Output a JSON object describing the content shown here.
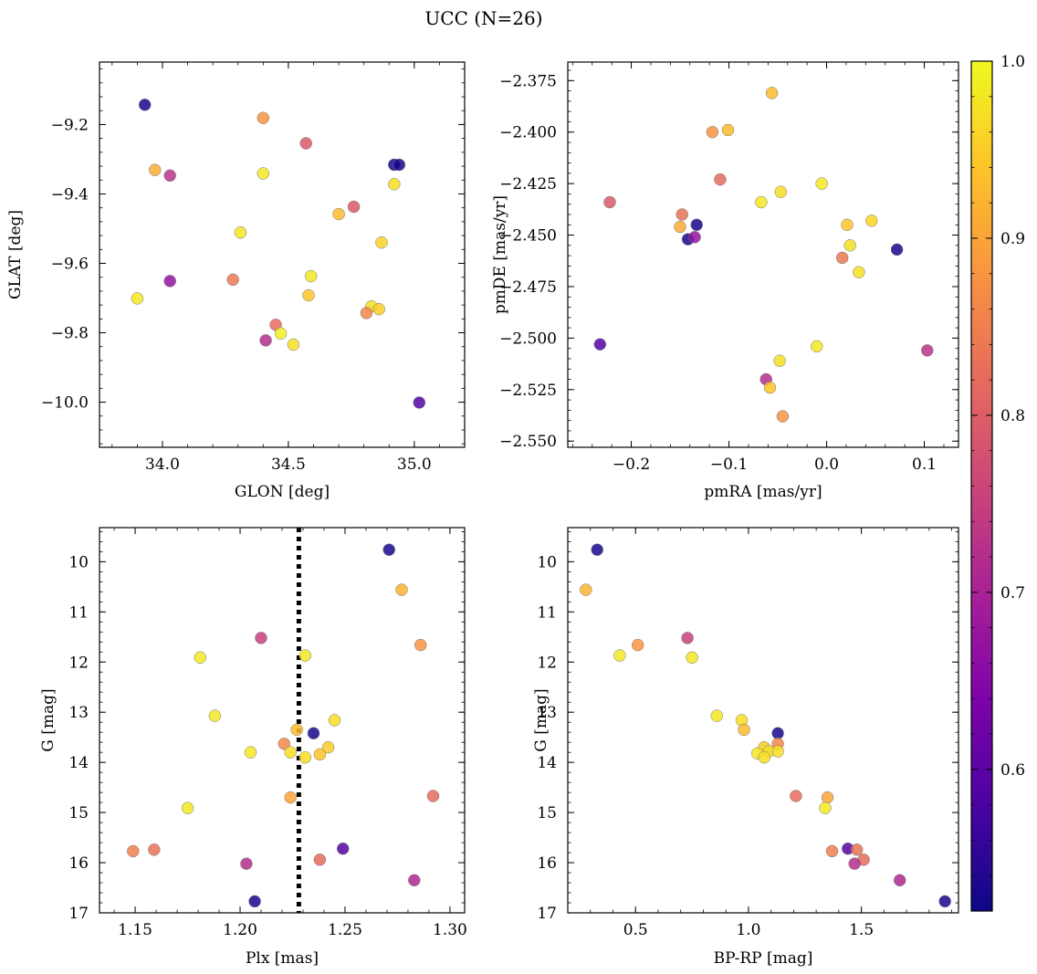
{
  "figure": {
    "title": "UCC (N=26)"
  },
  "colorbar": {
    "colormap": "plasma",
    "vmin": 0.52,
    "vmax": 1.0,
    "ticks": [
      "0.6",
      "0.7",
      "0.8",
      "0.9",
      "1.0"
    ]
  },
  "chart_data": [
    {
      "type": "scatter",
      "name": "position",
      "xlabel": "GLON [deg]",
      "ylabel": "GLAT [deg]",
      "xlim": [
        33.75,
        35.2
      ],
      "ylim": [
        -10.13,
        -9.02
      ],
      "y_inverted": false,
      "xticks": [
        "34.0",
        "34.5",
        "35.0"
      ],
      "yticks": [
        "-9.2",
        "-9.4",
        "-9.6",
        "-9.8",
        "-10.0"
      ],
      "points": [
        {
          "x": 33.93,
          "y": -9.143,
          "c": 0.53
        },
        {
          "x": 34.4,
          "y": -9.181,
          "c": 0.88
        },
        {
          "x": 34.57,
          "y": -9.254,
          "c": 0.79
        },
        {
          "x": 33.97,
          "y": -9.331,
          "c": 0.91
        },
        {
          "x": 34.03,
          "y": -9.347,
          "c": 0.73
        },
        {
          "x": 34.4,
          "y": -9.341,
          "c": 0.98
        },
        {
          "x": 34.92,
          "y": -9.316,
          "c": 0.53
        },
        {
          "x": 34.94,
          "y": -9.316,
          "c": 0.53
        },
        {
          "x": 34.92,
          "y": -9.372,
          "c": 0.97
        },
        {
          "x": 34.76,
          "y": -9.437,
          "c": 0.79
        },
        {
          "x": 34.7,
          "y": -9.458,
          "c": 0.93
        },
        {
          "x": 34.31,
          "y": -9.511,
          "c": 0.98
        },
        {
          "x": 34.87,
          "y": -9.54,
          "c": 0.96
        },
        {
          "x": 34.59,
          "y": -9.637,
          "c": 0.98
        },
        {
          "x": 34.03,
          "y": -9.651,
          "c": 0.67
        },
        {
          "x": 34.28,
          "y": -9.647,
          "c": 0.84
        },
        {
          "x": 33.9,
          "y": -9.701,
          "c": 0.98
        },
        {
          "x": 34.58,
          "y": -9.692,
          "c": 0.94
        },
        {
          "x": 34.83,
          "y": -9.724,
          "c": 0.97
        },
        {
          "x": 34.86,
          "y": -9.732,
          "c": 0.95
        },
        {
          "x": 34.81,
          "y": -9.743,
          "c": 0.86
        },
        {
          "x": 34.45,
          "y": -9.777,
          "c": 0.82
        },
        {
          "x": 34.47,
          "y": -9.802,
          "c": 0.99
        },
        {
          "x": 34.41,
          "y": -9.822,
          "c": 0.72
        },
        {
          "x": 34.52,
          "y": -9.834,
          "c": 0.97
        },
        {
          "x": 35.02,
          "y": -10.001,
          "c": 0.59
        }
      ]
    },
    {
      "type": "scatter",
      "name": "proper-motion",
      "xlabel": "pmRA [mas/yr]",
      "ylabel": "pmDE [mas/yr]",
      "xlim": [
        -0.265,
        0.135
      ],
      "ylim": [
        -2.553,
        -2.366
      ],
      "y_inverted": false,
      "xticks": [
        "-0.2",
        "-0.1",
        "0.0",
        "0.1"
      ],
      "yticks": [
        "-2.375",
        "-2.400",
        "-2.425",
        "-2.450",
        "-2.475",
        "-2.500",
        "-2.525",
        "-2.550"
      ],
      "points": [
        {
          "x": -0.056,
          "y": -2.381,
          "c": 0.93
        },
        {
          "x": -0.117,
          "y": -2.4,
          "c": 0.88
        },
        {
          "x": -0.101,
          "y": -2.399,
          "c": 0.93
        },
        {
          "x": -0.109,
          "y": -2.423,
          "c": 0.82
        },
        {
          "x": -0.005,
          "y": -2.425,
          "c": 0.98
        },
        {
          "x": -0.222,
          "y": -2.434,
          "c": 0.79
        },
        {
          "x": -0.067,
          "y": -2.434,
          "c": 0.98
        },
        {
          "x": -0.047,
          "y": -2.429,
          "c": 0.97
        },
        {
          "x": -0.148,
          "y": -2.44,
          "c": 0.83
        },
        {
          "x": -0.15,
          "y": -2.446,
          "c": 0.91
        },
        {
          "x": -0.133,
          "y": -2.445,
          "c": 0.53
        },
        {
          "x": -0.142,
          "y": -2.452,
          "c": 0.53
        },
        {
          "x": -0.135,
          "y": -2.451,
          "c": 0.67
        },
        {
          "x": 0.021,
          "y": -2.445,
          "c": 0.94
        },
        {
          "x": 0.046,
          "y": -2.443,
          "c": 0.96
        },
        {
          "x": 0.024,
          "y": -2.455,
          "c": 0.97
        },
        {
          "x": 0.016,
          "y": -2.461,
          "c": 0.84
        },
        {
          "x": 0.072,
          "y": -2.457,
          "c": 0.53
        },
        {
          "x": 0.033,
          "y": -2.468,
          "c": 0.97
        },
        {
          "x": -0.232,
          "y": -2.503,
          "c": 0.59
        },
        {
          "x": -0.01,
          "y": -2.504,
          "c": 0.98
        },
        {
          "x": 0.103,
          "y": -2.506,
          "c": 0.73
        },
        {
          "x": -0.048,
          "y": -2.511,
          "c": 0.97
        },
        {
          "x": -0.062,
          "y": -2.52,
          "c": 0.72
        },
        {
          "x": -0.058,
          "y": -2.524,
          "c": 0.94
        },
        {
          "x": -0.045,
          "y": -2.538,
          "c": 0.88
        }
      ]
    },
    {
      "type": "scatter",
      "name": "parallax-magnitude",
      "xlabel": "Plx [mas]",
      "ylabel": "G [mag]",
      "xlim": [
        1.133,
        1.307
      ],
      "ylim": [
        17.0,
        9.32
      ],
      "y_inverted": true,
      "xticks": [
        "1.15",
        "1.20",
        "1.25",
        "1.30"
      ],
      "yticks": [
        "10",
        "11",
        "12",
        "13",
        "14",
        "15",
        "16",
        "17"
      ],
      "vline": {
        "x": 1.228,
        "style": "dotted"
      },
      "points": [
        {
          "x": 1.271,
          "y": 9.76,
          "c": 0.53
        },
        {
          "x": 1.277,
          "y": 10.56,
          "c": 0.92
        },
        {
          "x": 1.21,
          "y": 11.52,
          "c": 0.75
        },
        {
          "x": 1.286,
          "y": 11.66,
          "c": 0.88
        },
        {
          "x": 1.181,
          "y": 11.91,
          "c": 0.98
        },
        {
          "x": 1.231,
          "y": 11.87,
          "c": 0.98
        },
        {
          "x": 1.188,
          "y": 13.07,
          "c": 0.98
        },
        {
          "x": 1.245,
          "y": 13.16,
          "c": 0.97
        },
        {
          "x": 1.227,
          "y": 13.35,
          "c": 0.93
        },
        {
          "x": 1.235,
          "y": 13.42,
          "c": 0.53
        },
        {
          "x": 1.221,
          "y": 13.63,
          "c": 0.86
        },
        {
          "x": 1.242,
          "y": 13.7,
          "c": 0.95
        },
        {
          "x": 1.205,
          "y": 13.8,
          "c": 0.98
        },
        {
          "x": 1.224,
          "y": 13.8,
          "c": 0.97
        },
        {
          "x": 1.238,
          "y": 13.84,
          "c": 0.94
        },
        {
          "x": 1.231,
          "y": 13.9,
          "c": 0.97
        },
        {
          "x": 1.175,
          "y": 14.91,
          "c": 0.98
        },
        {
          "x": 1.224,
          "y": 14.7,
          "c": 0.9
        },
        {
          "x": 1.292,
          "y": 14.67,
          "c": 0.82
        },
        {
          "x": 1.149,
          "y": 15.77,
          "c": 0.85
        },
        {
          "x": 1.159,
          "y": 15.74,
          "c": 0.83
        },
        {
          "x": 1.249,
          "y": 15.72,
          "c": 0.59
        },
        {
          "x": 1.203,
          "y": 16.02,
          "c": 0.72
        },
        {
          "x": 1.238,
          "y": 15.94,
          "c": 0.82
        },
        {
          "x": 1.283,
          "y": 16.35,
          "c": 0.71
        },
        {
          "x": 1.207,
          "y": 16.77,
          "c": 0.53
        }
      ]
    },
    {
      "type": "scatter",
      "name": "color-magnitude",
      "xlabel": "BP-RP [mag]",
      "ylabel": "G [mag]",
      "xlim": [
        0.2,
        1.93
      ],
      "ylim": [
        17.0,
        9.32
      ],
      "y_inverted": true,
      "xticks": [
        "0.5",
        "1.0",
        "1.5"
      ],
      "yticks": [
        "10",
        "11",
        "12",
        "13",
        "14",
        "15",
        "16",
        "17"
      ],
      "points": [
        {
          "x": 0.33,
          "y": 9.76,
          "c": 0.53
        },
        {
          "x": 0.28,
          "y": 10.56,
          "c": 0.92
        },
        {
          "x": 0.73,
          "y": 11.52,
          "c": 0.75
        },
        {
          "x": 0.51,
          "y": 11.66,
          "c": 0.88
        },
        {
          "x": 0.43,
          "y": 11.87,
          "c": 0.98
        },
        {
          "x": 0.75,
          "y": 11.91,
          "c": 0.98
        },
        {
          "x": 0.86,
          "y": 13.07,
          "c": 0.98
        },
        {
          "x": 0.97,
          "y": 13.16,
          "c": 0.97
        },
        {
          "x": 0.98,
          "y": 13.35,
          "c": 0.93
        },
        {
          "x": 1.13,
          "y": 13.42,
          "c": 0.53
        },
        {
          "x": 1.13,
          "y": 13.63,
          "c": 0.86
        },
        {
          "x": 1.07,
          "y": 13.7,
          "c": 0.95
        },
        {
          "x": 1.04,
          "y": 13.82,
          "c": 0.98
        },
        {
          "x": 1.09,
          "y": 13.78,
          "c": 0.97
        },
        {
          "x": 1.13,
          "y": 13.78,
          "c": 0.97
        },
        {
          "x": 1.07,
          "y": 13.9,
          "c": 0.97
        },
        {
          "x": 1.21,
          "y": 14.67,
          "c": 0.82
        },
        {
          "x": 1.35,
          "y": 14.7,
          "c": 0.9
        },
        {
          "x": 1.34,
          "y": 14.91,
          "c": 0.98
        },
        {
          "x": 1.44,
          "y": 15.72,
          "c": 0.59
        },
        {
          "x": 1.37,
          "y": 15.77,
          "c": 0.85
        },
        {
          "x": 1.48,
          "y": 15.74,
          "c": 0.83
        },
        {
          "x": 1.51,
          "y": 15.94,
          "c": 0.82
        },
        {
          "x": 1.47,
          "y": 16.02,
          "c": 0.72
        },
        {
          "x": 1.67,
          "y": 16.35,
          "c": 0.71
        },
        {
          "x": 1.87,
          "y": 16.77,
          "c": 0.53
        }
      ]
    }
  ]
}
